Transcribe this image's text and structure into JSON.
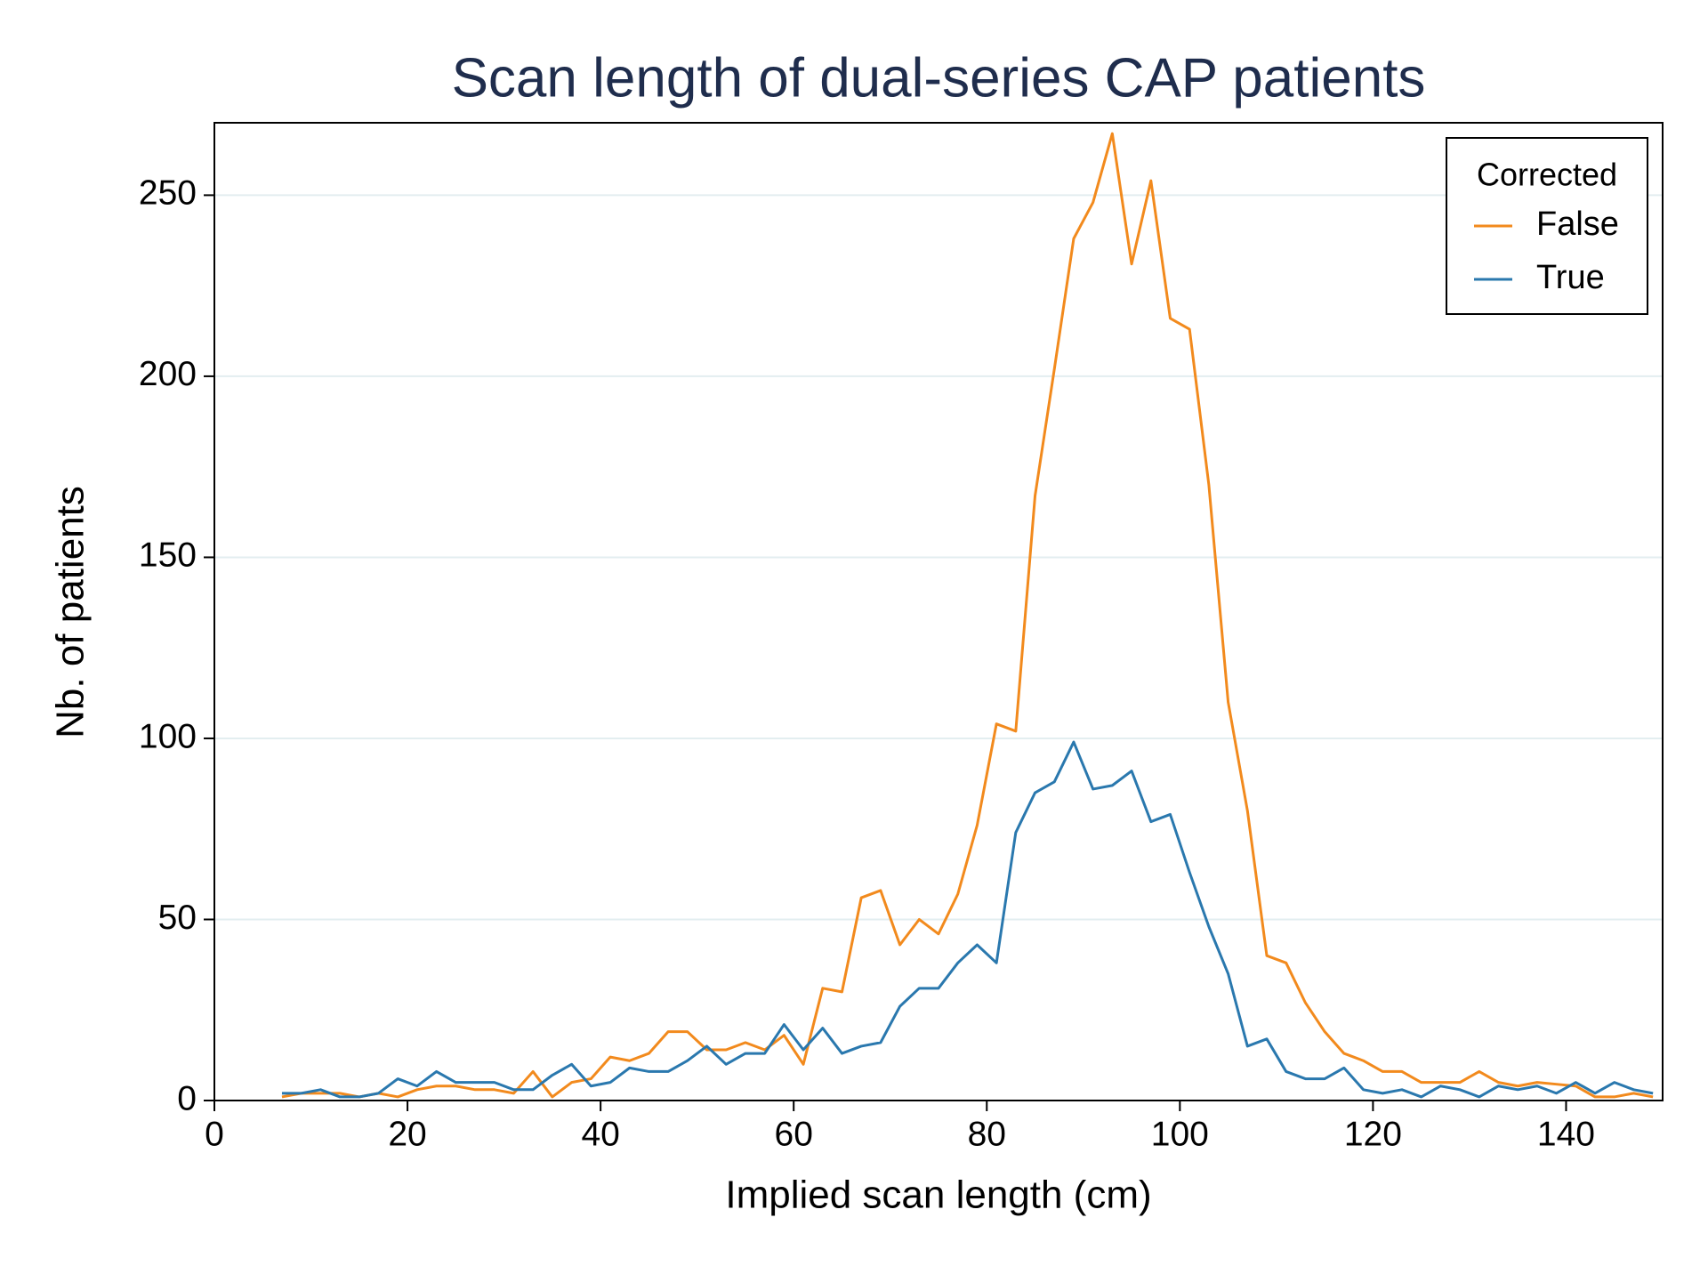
{
  "chart_data": {
    "type": "line",
    "title": "Scan length of dual-series CAP patients",
    "x_label": "Implied scan length (cm)",
    "y_label": "Nb. of patients",
    "x": [
      7,
      9,
      11,
      13,
      15,
      17,
      19,
      21,
      23,
      25,
      27,
      29,
      31,
      33,
      35,
      37,
      39,
      41,
      43,
      45,
      47,
      49,
      51,
      53,
      55,
      57,
      59,
      61,
      63,
      65,
      67,
      69,
      71,
      73,
      75,
      77,
      79,
      81,
      83,
      85,
      87,
      89,
      91,
      93,
      95,
      97,
      99,
      101,
      103,
      105,
      107,
      109,
      111,
      113,
      115,
      117,
      119,
      121,
      123,
      125,
      127,
      129,
      131,
      133,
      135,
      137,
      139,
      141,
      143,
      145,
      147,
      149
    ],
    "series": [
      {
        "name": "False",
        "color": "#f28a1d",
        "values": [
          1,
          2,
          2,
          2,
          1,
          2,
          1,
          3,
          4,
          4,
          3,
          3,
          2,
          8,
          1,
          5,
          6,
          12,
          11,
          13,
          19,
          19,
          14,
          14,
          16,
          14,
          18,
          10,
          31,
          30,
          56,
          58,
          43,
          50,
          46,
          57,
          76,
          104,
          102,
          167,
          202,
          238,
          248,
          267,
          231,
          254,
          216,
          213,
          170,
          110,
          80,
          40,
          38,
          27,
          19,
          13,
          11,
          8,
          8,
          5,
          5,
          5,
          8,
          5,
          4,
          5,
          4.5,
          4,
          1,
          1,
          2,
          1
        ]
      },
      {
        "name": "True",
        "color": "#2a78ae",
        "values": [
          2,
          2,
          3,
          1,
          1,
          2,
          6,
          4,
          8,
          5,
          5,
          5,
          3,
          3,
          7,
          10,
          4,
          5,
          9,
          8,
          8,
          11,
          15,
          10,
          13,
          13,
          21,
          14,
          20,
          13,
          15,
          16,
          26,
          31,
          31,
          38,
          43,
          38,
          74,
          85,
          88,
          99,
          86,
          87,
          91,
          77,
          79,
          63,
          48,
          35,
          15,
          17,
          8,
          6,
          6,
          9,
          3,
          2,
          3,
          1,
          4,
          3,
          1,
          4,
          3,
          4,
          2,
          5,
          2,
          5,
          3,
          2
        ]
      }
    ],
    "legend_title": "Corrected",
    "legend_position": "upper right",
    "xlim": [
      0,
      150
    ],
    "xticks": [
      0,
      20,
      40,
      60,
      80,
      100,
      120,
      140
    ],
    "ylim": [
      0,
      270
    ],
    "yticks": [
      0,
      50,
      100,
      150,
      200,
      250
    ],
    "grid": true
  }
}
